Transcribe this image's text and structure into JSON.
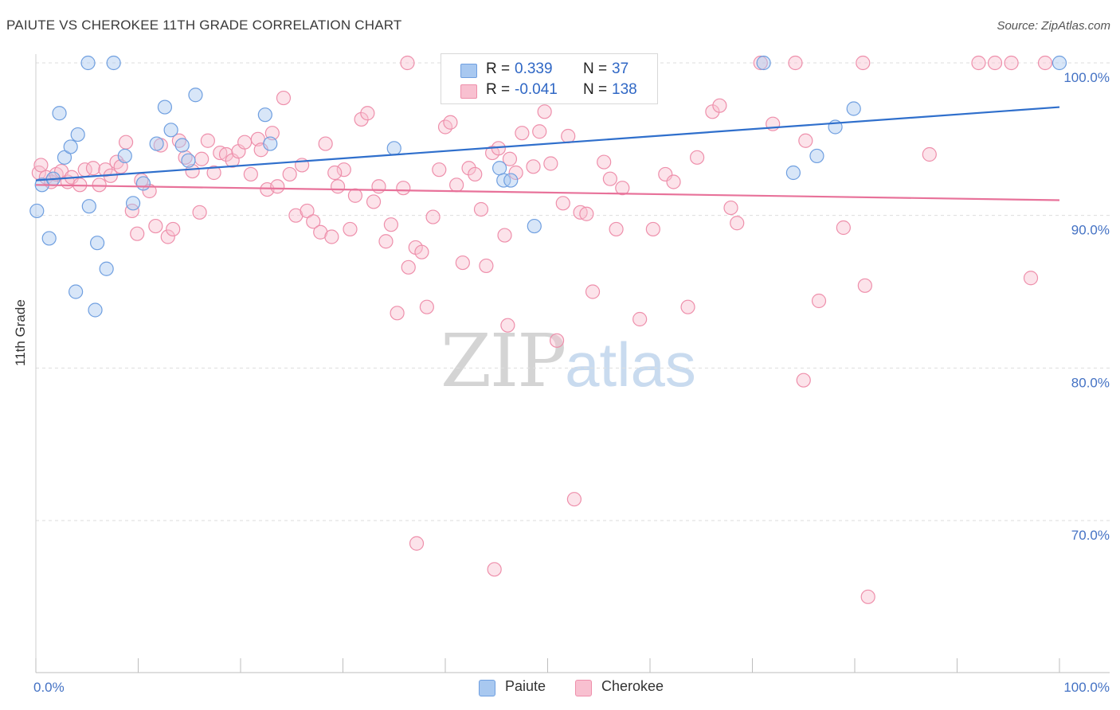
{
  "header": {
    "title": "PAIUTE VS CHEROKEE 11TH GRADE CORRELATION CHART",
    "source": "Source: ZipAtlas.com"
  },
  "watermark": {
    "zip": "ZIP",
    "atlas": "atlas"
  },
  "legend_top": {
    "r_label": "R =",
    "n_label": "N =",
    "rows": [
      {
        "r": "0.339",
        "n": "37"
      },
      {
        "r": "-0.041",
        "n": "138"
      }
    ]
  },
  "colors": {
    "paiute_fill": "#a8c8f0",
    "paiute_stroke": "#6f9fe0",
    "paiute_line": "#2f6fcc",
    "cherokee_fill": "#f8c0d0",
    "cherokee_stroke": "#ee8fab",
    "cherokee_line": "#e8729a",
    "tick_text": "#4472c4"
  },
  "chart_data": {
    "type": "scatter",
    "title": "PAIUTE VS CHEROKEE 11TH GRADE CORRELATION CHART",
    "xlabel": "",
    "ylabel": "11th Grade",
    "xlim": [
      0,
      100
    ],
    "ylim": [
      60,
      101.5
    ],
    "x_tick_labels": [
      "0.0%",
      "100.0%"
    ],
    "y_ticks": [
      70,
      80,
      90,
      100
    ],
    "y_tick_labels": [
      "70.0%",
      "80.0%",
      "90.0%",
      "100.0%"
    ],
    "grid": true,
    "legend_position": "bottom-center",
    "series": [
      {
        "name": "Paiute",
        "color": "#a8c8f0",
        "trend": {
          "x": [
            0,
            100
          ],
          "y": [
            92.3,
            97.1
          ]
        },
        "points": [
          [
            0.1,
            90.3
          ],
          [
            0.6,
            92.0
          ],
          [
            1.3,
            88.5
          ],
          [
            1.7,
            92.4
          ],
          [
            2.3,
            96.7
          ],
          [
            2.8,
            93.8
          ],
          [
            3.4,
            94.5
          ],
          [
            4.1,
            95.3
          ],
          [
            3.9,
            85.0
          ],
          [
            5.1,
            100.0
          ],
          [
            5.2,
            90.6
          ],
          [
            6.0,
            88.2
          ],
          [
            5.8,
            83.8
          ],
          [
            7.6,
            100.0
          ],
          [
            6.9,
            86.5
          ],
          [
            8.7,
            93.9
          ],
          [
            9.5,
            90.8
          ],
          [
            10.5,
            92.1
          ],
          [
            11.8,
            94.7
          ],
          [
            12.6,
            97.1
          ],
          [
            13.2,
            95.6
          ],
          [
            14.3,
            94.6
          ],
          [
            14.9,
            93.6
          ],
          [
            15.6,
            97.9
          ],
          [
            22.4,
            96.6
          ],
          [
            22.9,
            94.7
          ],
          [
            35.0,
            94.4
          ],
          [
            45.3,
            93.1
          ],
          [
            45.7,
            92.3
          ],
          [
            46.4,
            92.3
          ],
          [
            48.7,
            89.3
          ],
          [
            71.1,
            100.0
          ],
          [
            74.0,
            92.8
          ],
          [
            76.3,
            93.9
          ],
          [
            78.1,
            95.8
          ],
          [
            79.9,
            97.0
          ],
          [
            100.0,
            100.0
          ]
        ]
      },
      {
        "name": "Cherokee",
        "color": "#f8c0d0",
        "trend": {
          "x": [
            0,
            100
          ],
          "y": [
            92.0,
            91.0
          ]
        },
        "points": [
          [
            0.3,
            92.8
          ],
          [
            0.5,
            93.3
          ],
          [
            1.0,
            92.5
          ],
          [
            1.5,
            92.2
          ],
          [
            2.0,
            92.7
          ],
          [
            2.5,
            92.9
          ],
          [
            3.1,
            92.2
          ],
          [
            3.5,
            92.5
          ],
          [
            4.3,
            92.0
          ],
          [
            4.8,
            93.0
          ],
          [
            5.6,
            93.1
          ],
          [
            6.2,
            92.0
          ],
          [
            6.8,
            93.0
          ],
          [
            7.3,
            92.6
          ],
          [
            7.9,
            93.5
          ],
          [
            8.3,
            93.2
          ],
          [
            8.8,
            94.8
          ],
          [
            9.4,
            90.3
          ],
          [
            9.9,
            88.8
          ],
          [
            10.3,
            92.3
          ],
          [
            11.1,
            91.6
          ],
          [
            11.7,
            89.3
          ],
          [
            12.2,
            94.6
          ],
          [
            12.9,
            88.6
          ],
          [
            13.4,
            89.1
          ],
          [
            14.0,
            94.9
          ],
          [
            14.6,
            93.8
          ],
          [
            15.3,
            92.9
          ],
          [
            16.0,
            90.2
          ],
          [
            16.8,
            94.9
          ],
          [
            17.4,
            92.8
          ],
          [
            18.0,
            94.1
          ],
          [
            18.6,
            94.0
          ],
          [
            19.2,
            93.6
          ],
          [
            19.8,
            94.2
          ],
          [
            20.4,
            94.8
          ],
          [
            21.0,
            92.7
          ],
          [
            21.7,
            95.0
          ],
          [
            22.0,
            94.3
          ],
          [
            22.6,
            91.7
          ],
          [
            23.1,
            95.4
          ],
          [
            23.6,
            91.9
          ],
          [
            24.2,
            97.7
          ],
          [
            24.8,
            92.7
          ],
          [
            25.4,
            90.0
          ],
          [
            26.0,
            93.3
          ],
          [
            26.5,
            90.3
          ],
          [
            27.1,
            89.6
          ],
          [
            27.8,
            88.9
          ],
          [
            28.3,
            94.7
          ],
          [
            28.9,
            88.6
          ],
          [
            29.5,
            91.9
          ],
          [
            30.1,
            93.0
          ],
          [
            30.7,
            89.1
          ],
          [
            31.2,
            91.3
          ],
          [
            31.8,
            96.3
          ],
          [
            32.4,
            96.7
          ],
          [
            33.0,
            90.9
          ],
          [
            33.5,
            91.9
          ],
          [
            34.2,
            88.3
          ],
          [
            34.7,
            89.4
          ],
          [
            35.3,
            83.6
          ],
          [
            35.9,
            91.8
          ],
          [
            36.4,
            86.6
          ],
          [
            37.1,
            87.9
          ],
          [
            37.7,
            87.6
          ],
          [
            37.2,
            68.5
          ],
          [
            38.2,
            84.0
          ],
          [
            38.8,
            89.9
          ],
          [
            39.4,
            93.0
          ],
          [
            40.0,
            95.8
          ],
          [
            40.5,
            96.1
          ],
          [
            41.1,
            92.0
          ],
          [
            41.7,
            86.9
          ],
          [
            42.3,
            93.1
          ],
          [
            42.9,
            92.7
          ],
          [
            43.5,
            90.4
          ],
          [
            44.0,
            86.7
          ],
          [
            44.6,
            94.1
          ],
          [
            45.2,
            94.4
          ],
          [
            45.8,
            88.7
          ],
          [
            46.3,
            93.7
          ],
          [
            46.9,
            92.8
          ],
          [
            44.8,
            66.8
          ],
          [
            46.1,
            82.8
          ],
          [
            47.5,
            95.4
          ],
          [
            48.0,
            100.0
          ],
          [
            48.6,
            93.2
          ],
          [
            49.2,
            95.5
          ],
          [
            49.7,
            96.8
          ],
          [
            50.3,
            93.4
          ],
          [
            50.9,
            81.8
          ],
          [
            51.5,
            90.8
          ],
          [
            52.0,
            95.2
          ],
          [
            52.6,
            71.4
          ],
          [
            53.2,
            90.2
          ],
          [
            53.8,
            90.1
          ],
          [
            54.4,
            85.0
          ],
          [
            55.0,
            100.0
          ],
          [
            55.5,
            93.5
          ],
          [
            56.1,
            92.4
          ],
          [
            56.7,
            89.1
          ],
          [
            57.3,
            91.8
          ],
          [
            58.2,
            100.0
          ],
          [
            59.0,
            83.2
          ],
          [
            60.3,
            89.1
          ],
          [
            61.5,
            92.7
          ],
          [
            62.3,
            92.2
          ],
          [
            63.7,
            84.0
          ],
          [
            64.6,
            93.8
          ],
          [
            66.1,
            96.8
          ],
          [
            66.8,
            97.2
          ],
          [
            67.9,
            90.5
          ],
          [
            68.5,
            89.5
          ],
          [
            70.8,
            100.0
          ],
          [
            72.0,
            96.0
          ],
          [
            75.2,
            94.9
          ],
          [
            76.5,
            84.4
          ],
          [
            75.0,
            79.2
          ],
          [
            78.9,
            89.2
          ],
          [
            80.8,
            100.0
          ],
          [
            81.0,
            85.4
          ],
          [
            81.3,
            65.0
          ],
          [
            87.3,
            94.0
          ],
          [
            92.1,
            100.0
          ],
          [
            93.7,
            100.0
          ],
          [
            95.3,
            100.0
          ],
          [
            97.2,
            85.9
          ],
          [
            98.6,
            100.0
          ],
          [
            74.2,
            100.0
          ],
          [
            55.9,
            100.0
          ],
          [
            36.3,
            100.0
          ],
          [
            16.2,
            93.7
          ],
          [
            29.2,
            92.8
          ]
        ]
      }
    ]
  },
  "legend_bottom": {
    "items": [
      {
        "label": "Paiute"
      },
      {
        "label": "Cherokee"
      }
    ]
  }
}
